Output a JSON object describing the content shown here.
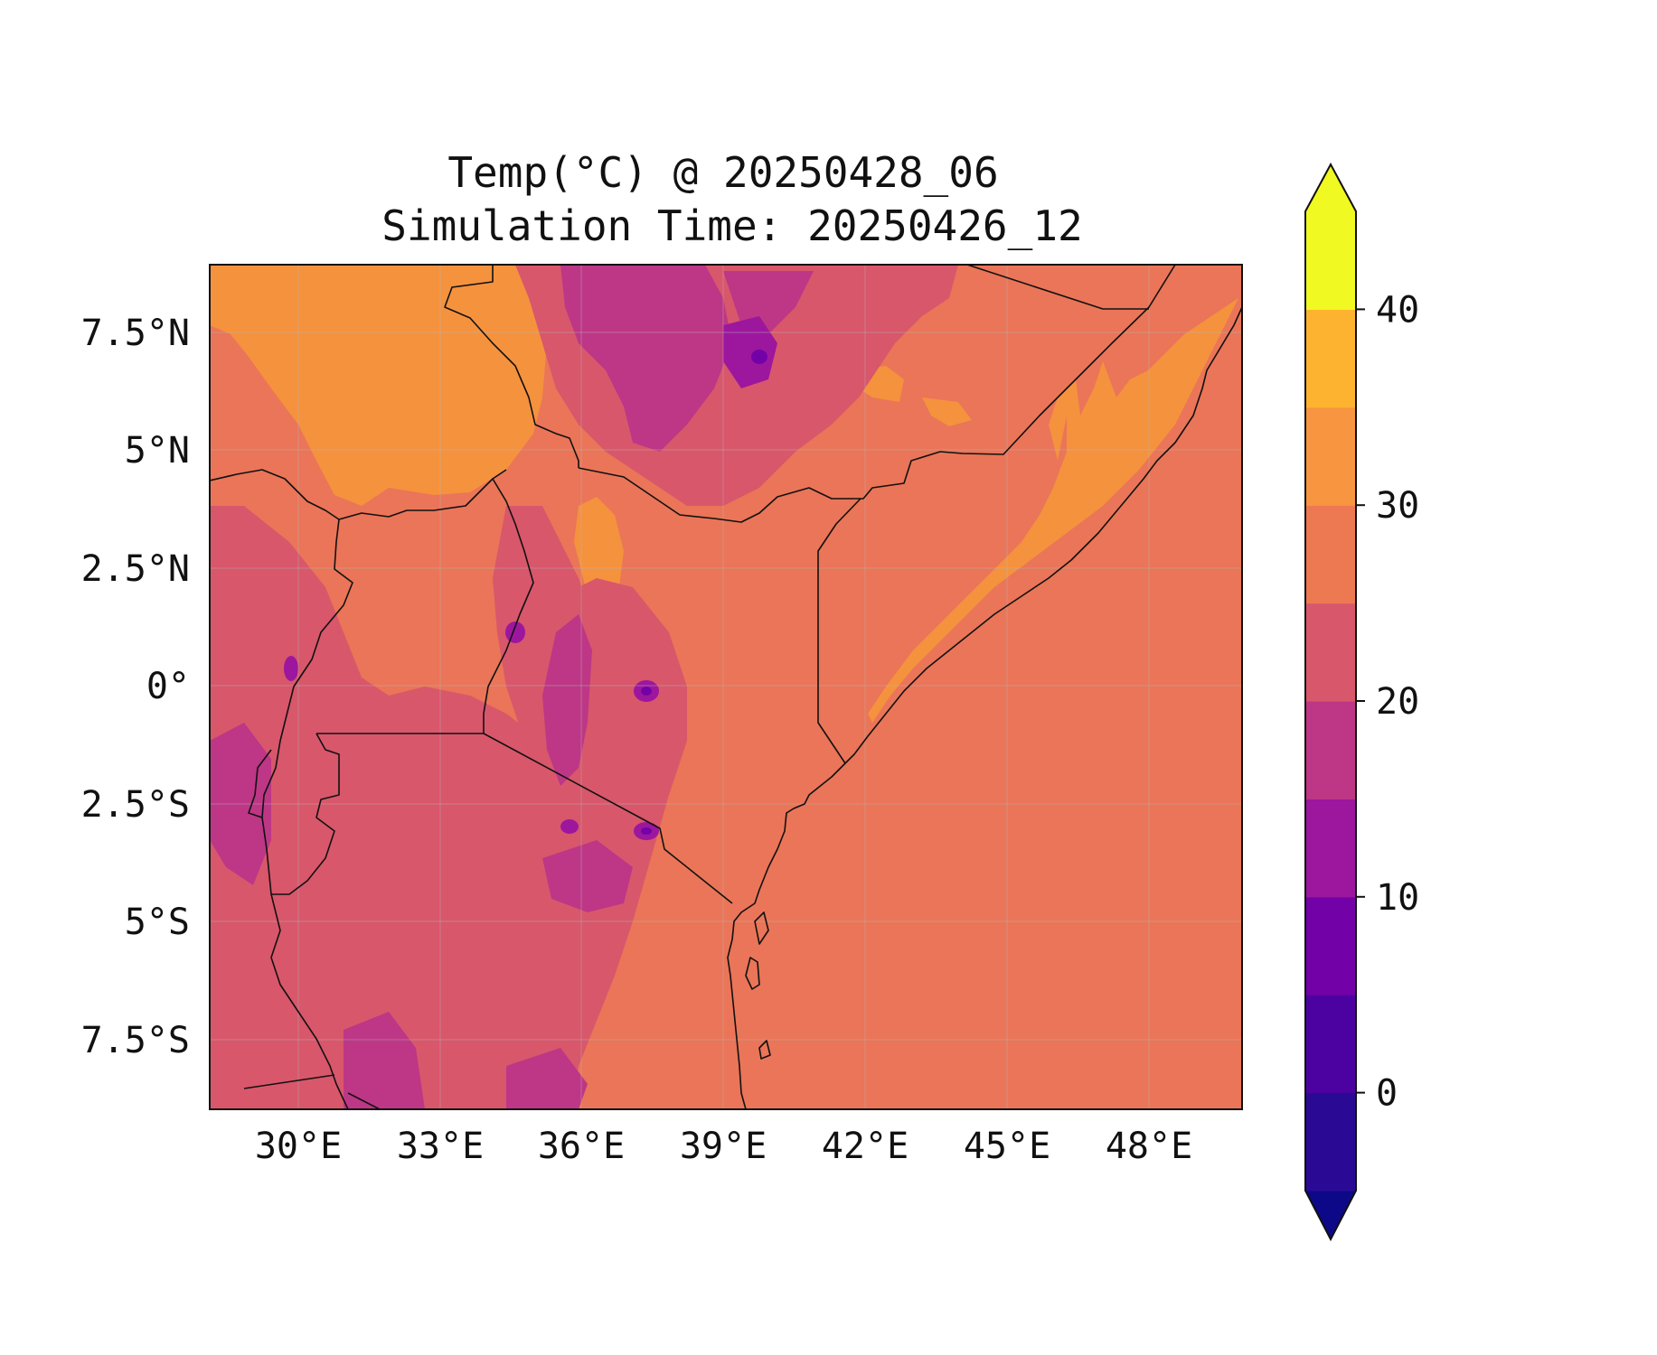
{
  "figure": {
    "title_line1": "Temp(°C) @ 20250428_06",
    "title_line2": "Simulation Time: 20250426_12"
  },
  "map": {
    "type": "filled-contour",
    "variable": "Temp(°C)",
    "lon_range": [
      28.6,
      50.4
    ],
    "lat_range": [
      -9.0,
      8.8
    ],
    "gridlines": true,
    "lon_ticks": [
      30,
      33,
      36,
      39,
      42,
      45,
      48
    ],
    "lon_tick_labels": [
      "30°E",
      "33°E",
      "36°E",
      "39°E",
      "42°E",
      "45°E",
      "48°E"
    ],
    "lat_ticks": [
      7.5,
      5,
      2.5,
      0,
      -2.5,
      -5,
      -7.5
    ],
    "lat_tick_labels": [
      "7.5°N",
      "5°N",
      "2.5°N",
      "0°",
      "2.5°S",
      "5°S",
      "7.5°S"
    ],
    "dominant_levels": {
      "ocean_and_coastal_plains": "25–30",
      "northern_lowlands": "30–35",
      "highlands": "20–25",
      "mountain_peaks": "10–20"
    }
  },
  "colorbar": {
    "levels": [
      -5,
      0,
      5,
      10,
      15,
      20,
      25,
      30,
      35,
      40,
      45
    ],
    "colors": [
      "#2a0a94",
      "#4c02a1",
      "#7301a8",
      "#9c179e",
      "#bd3786",
      "#d8576b",
      "#ed7953",
      "#f89540",
      "#fdb32f",
      "#f0f921"
    ],
    "under_color": "#0d0887",
    "over_color": "#f0f921",
    "tick_values": [
      0,
      10,
      20,
      30,
      40
    ],
    "tick_labels": [
      "0",
      "10",
      "20",
      "30",
      "40"
    ],
    "extend": "both"
  }
}
